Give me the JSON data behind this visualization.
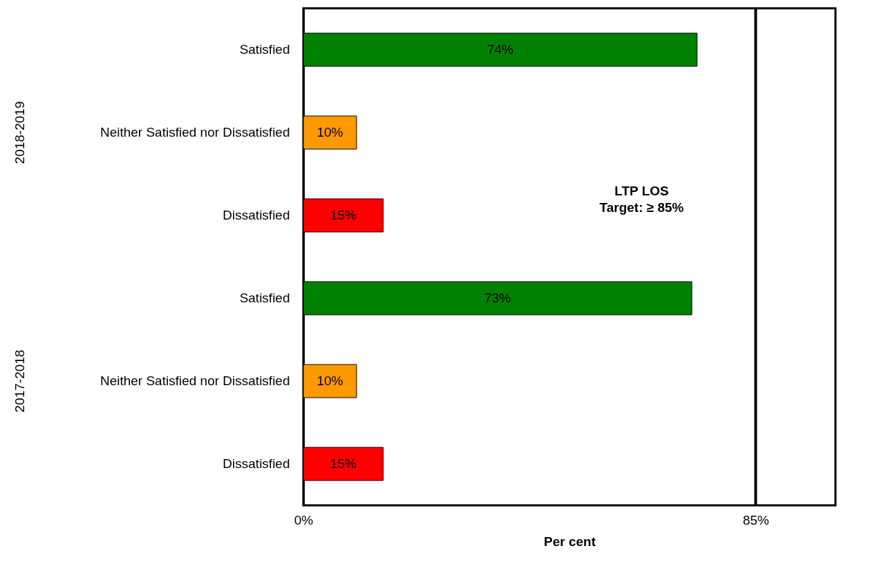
{
  "chart_data": {
    "type": "bar",
    "orientation": "horizontal",
    "categories": [
      "Satisfied",
      "Neither Satisfied nor Dissatisfied",
      "Dissatisfied",
      "Satisfied",
      "Neither Satisfied nor Dissatisfied",
      "Dissatisfied"
    ],
    "values": [
      74,
      10,
      15,
      73,
      10,
      15
    ],
    "colors": [
      "#008000",
      "#ff9900",
      "#ff0000",
      "#008000",
      "#ff9900",
      "#ff0000"
    ],
    "value_labels": [
      "74%",
      "10%",
      "15%",
      "73%",
      "10%",
      "15%"
    ],
    "xlabel": "Per cent",
    "xlim": [
      0,
      100
    ],
    "xticks": [
      {
        "value": 0,
        "label": "0%"
      },
      {
        "value": 85,
        "label": "85%"
      }
    ],
    "ref_lines": [
      {
        "axis": "x",
        "value": 85,
        "label": "LTP LOS\nTarget: ≥ 85%",
        "color": "#000000"
      }
    ],
    "annotations": [
      "2018-2019",
      "2017-2018"
    ],
    "grid": false
  }
}
